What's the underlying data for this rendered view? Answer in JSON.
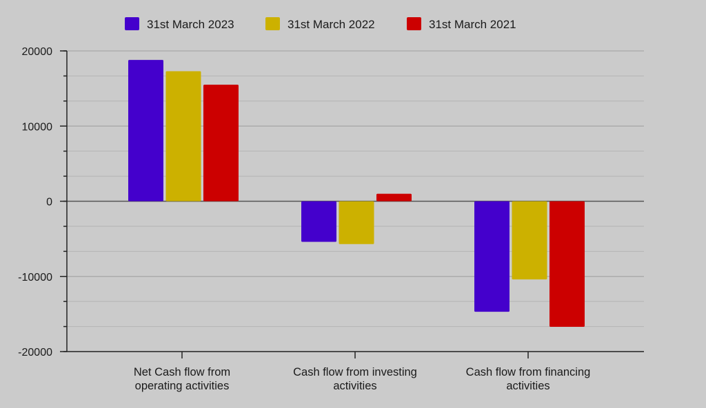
{
  "chart_data": {
    "type": "bar",
    "title": "",
    "xlabel": "",
    "ylabel": "",
    "categories": [
      [
        "Net Cash flow from",
        "operating activities"
      ],
      [
        "Cash flow from investing",
        "activities"
      ],
      [
        "Cash flow from financing",
        "activities"
      ]
    ],
    "series": [
      {
        "name": "31st March 2023",
        "color": "#4400cc",
        "values": [
          18800,
          -5400,
          -14700
        ]
      },
      {
        "name": "31st March 2022",
        "color": "#ccb100",
        "values": [
          17300,
          -5700,
          -10400
        ]
      },
      {
        "name": "31st March 2021",
        "color": "#cc0000",
        "values": [
          15500,
          1000,
          -16700
        ]
      }
    ],
    "ylim": [
      -20000,
      20000
    ],
    "yticks": [
      20000,
      10000,
      0,
      -10000,
      -20000
    ],
    "grid": true,
    "legend_position": "top"
  }
}
